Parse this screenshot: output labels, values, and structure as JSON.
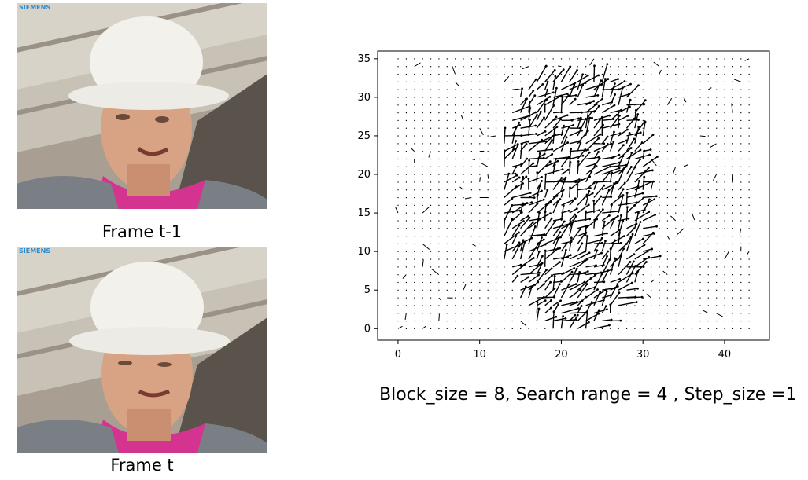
{
  "frames": [
    {
      "label": "Frame t-1",
      "logo": "SIEMENS"
    },
    {
      "label": "Frame t",
      "logo": "SIEMENS"
    }
  ],
  "caption": "Block_size = 8, Search range = 4 , Step_size =1",
  "chart_data": {
    "type": "quiver",
    "x_ticks": [
      0,
      10,
      20,
      30,
      40
    ],
    "y_ticks": [
      0,
      5,
      10,
      15,
      20,
      25,
      30,
      35
    ],
    "xlim": [
      -2.5,
      45.5
    ],
    "ylim": [
      -1.5,
      36
    ],
    "grid_x": [
      0,
      43
    ],
    "grid_y": [
      0,
      35
    ],
    "face_region": {
      "x": [
        13,
        30
      ],
      "y": [
        0,
        32
      ]
    },
    "arrow_color": "#000000",
    "title": "",
    "xlabel": "",
    "ylabel": ""
  }
}
